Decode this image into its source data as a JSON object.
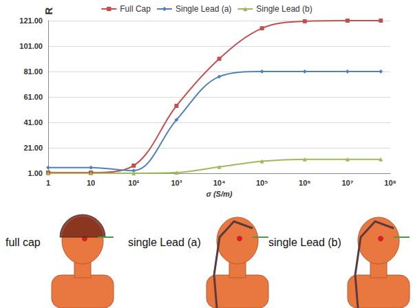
{
  "chart_data": {
    "type": "line",
    "x_label": "σ (S/m)",
    "y_label": "R",
    "log": "x",
    "grid": true,
    "legend": "top",
    "x": [
      1,
      10,
      100,
      1000,
      10000,
      100000,
      1000000,
      10000000,
      60000000
    ],
    "series": [
      {
        "name": "Full Cap",
        "color": "#c0504d",
        "marker": "square",
        "values": [
          1.5,
          1.5,
          7,
          54,
          91,
          115,
          120.5,
          121,
          121
        ]
      },
      {
        "name": "Single Lead (a)",
        "color": "#4f81bd",
        "marker": "diamond",
        "values": [
          5.5,
          5.5,
          3,
          43,
          77,
          81,
          81,
          81,
          81
        ]
      },
      {
        "name": "Single Lead (b)",
        "color": "#9bbb59",
        "marker": "triangle",
        "values": [
          1,
          1,
          1,
          1.5,
          6,
          10.5,
          12,
          12,
          12
        ]
      }
    ],
    "xlim": [
      1,
      100000000
    ],
    "xticks": [
      1,
      10,
      {
        "value": 100,
        "label": "10²"
      },
      {
        "value": 1000,
        "label": "10³"
      },
      {
        "value": 10000,
        "label": "10⁴"
      },
      {
        "value": 100000,
        "label": "10⁵"
      },
      {
        "value": 1000000,
        "label": "10⁶"
      },
      {
        "value": 10000000,
        "label": "10⁷"
      },
      {
        "value": 100000000,
        "label": "10⁸"
      }
    ],
    "ylim": [
      1,
      121
    ],
    "yticks": [
      {
        "value": 1,
        "label": "1.00"
      },
      {
        "value": 21,
        "label": "21.00"
      },
      {
        "value": 41,
        "label": "41.00"
      },
      {
        "value": 61,
        "label": "61.00"
      },
      {
        "value": 81,
        "label": "81.00"
      },
      {
        "value": 101,
        "label": "101.00"
      },
      {
        "value": 121,
        "label": "121.00"
      }
    ],
    "annotations": [
      "full cap",
      "single Lead (a)",
      "single Lead (b)"
    ]
  }
}
